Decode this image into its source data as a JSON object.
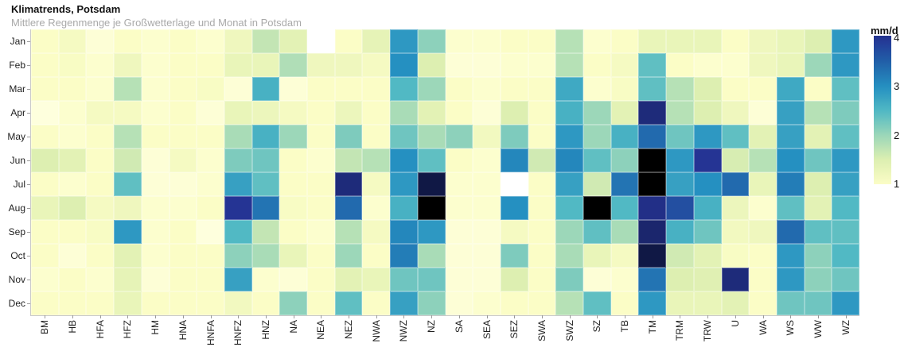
{
  "chart_data": {
    "type": "heatmap",
    "title": "Klimatrends, Potsdam",
    "subtitle": "Mittlere Regenmenge je Großwetterlage und Monat in Potsdam",
    "xlabel": "",
    "ylabel": "",
    "x_categories": [
      "BM",
      "HB",
      "HFA",
      "HFZ",
      "HM",
      "HNA",
      "HNFA",
      "HNFZ",
      "HNZ",
      "NA",
      "NEA",
      "NEZ",
      "NWA",
      "NWZ",
      "NZ",
      "SA",
      "SEA",
      "SEZ",
      "SWA",
      "SWZ",
      "SZ",
      "TB",
      "TM",
      "TRM",
      "TRW",
      "U",
      "WA",
      "WS",
      "WW",
      "WZ"
    ],
    "y_categories": [
      "Jan",
      "Feb",
      "Mar",
      "Apr",
      "May",
      "Jun",
      "Jul",
      "Aug",
      "Sep",
      "Oct",
      "Nov",
      "Dec"
    ],
    "legend": {
      "title": "mm/d",
      "ticks": [
        4,
        3,
        2,
        1
      ],
      "min": 1.0,
      "max": 4.05
    },
    "grid": false,
    "missing_color": "#ffffff",
    "colormap": [
      [
        0.8,
        "#ffffe5"
      ],
      [
        1.0,
        "#fbfdc6"
      ],
      [
        1.5,
        "#ddefb1"
      ],
      [
        2.0,
        "#9cd7b9"
      ],
      [
        2.5,
        "#51b9c4"
      ],
      [
        3.0,
        "#2590c1"
      ],
      [
        3.5,
        "#2161a9"
      ],
      [
        4.0,
        "#253494"
      ],
      [
        4.7,
        "#0d1338"
      ],
      [
        5.0,
        "#000000"
      ]
    ],
    "values_unit": "mm/d",
    "values": [
      [
        1.0,
        1.1,
        0.9,
        1.0,
        0.95,
        1.0,
        0.95,
        1.2,
        1.7,
        1.4,
        null,
        1.0,
        1.35,
        2.9,
        2.1,
        0.95,
        0.95,
        1.0,
        1.0,
        1.8,
        0.95,
        1.0,
        1.3,
        1.3,
        1.3,
        1.0,
        1.2,
        1.3,
        1.5,
        2.9
      ],
      [
        1.0,
        1.05,
        0.95,
        1.2,
        0.95,
        1.0,
        1.0,
        1.3,
        1.3,
        1.85,
        1.2,
        1.2,
        1.1,
        3.0,
        1.5,
        0.9,
        0.9,
        0.95,
        0.95,
        1.8,
        1.0,
        1.1,
        2.4,
        1.0,
        0.95,
        0.95,
        1.2,
        1.3,
        2.0,
        2.9
      ],
      [
        1.0,
        1.0,
        0.95,
        1.8,
        0.95,
        1.0,
        1.05,
        0.9,
        2.6,
        0.9,
        1.0,
        1.0,
        1.0,
        2.5,
        2.0,
        1.0,
        0.95,
        1.0,
        1.0,
        2.7,
        0.95,
        1.05,
        2.4,
        1.8,
        1.5,
        1.0,
        1.0,
        2.7,
        1.0,
        2.4
      ],
      [
        0.85,
        0.95,
        1.1,
        1.1,
        0.95,
        1.0,
        0.9,
        1.3,
        1.25,
        1.1,
        1.0,
        1.25,
        1.0,
        1.9,
        1.4,
        1.0,
        0.9,
        1.5,
        1.0,
        2.6,
        2.0,
        1.4,
        4.2,
        1.8,
        1.5,
        1.2,
        0.9,
        2.8,
        1.8,
        2.2
      ],
      [
        1.0,
        0.95,
        1.0,
        1.8,
        1.0,
        1.0,
        1.0,
        1.9,
        2.6,
        2.0,
        1.0,
        2.2,
        1.0,
        2.3,
        1.9,
        2.1,
        1.15,
        2.2,
        1.0,
        2.9,
        2.0,
        2.6,
        3.4,
        2.3,
        2.9,
        2.4,
        1.4,
        2.8,
        1.4,
        2.4
      ],
      [
        1.5,
        1.4,
        1.0,
        1.6,
        0.9,
        1.1,
        0.95,
        2.2,
        2.3,
        1.0,
        0.95,
        1.7,
        1.8,
        3.0,
        2.4,
        1.0,
        0.95,
        3.1,
        1.6,
        3.1,
        2.4,
        2.1,
        5.0,
        2.9,
        4.0,
        1.55,
        1.8,
        3.0,
        2.3,
        2.9
      ],
      [
        1.0,
        0.95,
        1.0,
        2.4,
        0.9,
        0.9,
        0.95,
        2.8,
        2.4,
        1.0,
        1.0,
        4.2,
        1.1,
        2.9,
        4.6,
        0.95,
        0.95,
        null,
        1.0,
        2.8,
        1.6,
        3.3,
        5.0,
        2.8,
        3.0,
        3.4,
        1.3,
        3.2,
        1.5,
        2.8
      ],
      [
        1.3,
        1.5,
        1.1,
        1.2,
        0.95,
        0.95,
        1.0,
        4.0,
        3.3,
        1.05,
        1.0,
        3.4,
        0.95,
        2.6,
        5.0,
        0.95,
        0.95,
        3.0,
        1.0,
        2.5,
        5.0,
        2.5,
        4.1,
        3.7,
        2.6,
        1.25,
        0.95,
        2.4,
        1.4,
        2.5
      ],
      [
        1.0,
        1.0,
        1.05,
        2.9,
        0.95,
        1.0,
        0.85,
        2.5,
        1.7,
        1.0,
        0.95,
        1.8,
        1.1,
        3.1,
        2.9,
        0.9,
        0.9,
        1.1,
        1.0,
        2.0,
        2.4,
        1.9,
        4.3,
        2.6,
        2.3,
        1.15,
        1.2,
        3.4,
        2.4,
        2.4
      ],
      [
        1.0,
        0.9,
        1.0,
        1.4,
        0.95,
        1.0,
        1.0,
        2.1,
        1.9,
        1.3,
        1.0,
        2.0,
        1.0,
        3.2,
        1.9,
        0.9,
        0.9,
        2.2,
        1.0,
        1.9,
        1.3,
        1.1,
        4.6,
        1.6,
        1.4,
        1.05,
        1.0,
        2.9,
        2.1,
        2.5
      ],
      [
        0.95,
        1.0,
        0.95,
        1.35,
        0.9,
        1.0,
        1.0,
        2.8,
        0.95,
        0.9,
        1.0,
        1.4,
        1.3,
        2.3,
        2.3,
        0.9,
        0.9,
        1.5,
        1.0,
        2.2,
        0.9,
        0.95,
        3.3,
        1.5,
        1.45,
        4.2,
        1.0,
        2.9,
        2.1,
        2.3
      ],
      [
        1.0,
        1.0,
        1.0,
        1.3,
        1.0,
        1.0,
        1.0,
        1.15,
        1.0,
        2.1,
        1.0,
        2.4,
        1.0,
        2.8,
        2.1,
        0.9,
        0.95,
        1.0,
        1.0,
        1.8,
        2.4,
        1.0,
        2.9,
        1.3,
        1.3,
        1.4,
        1.0,
        2.3,
        2.3,
        2.9
      ]
    ]
  }
}
